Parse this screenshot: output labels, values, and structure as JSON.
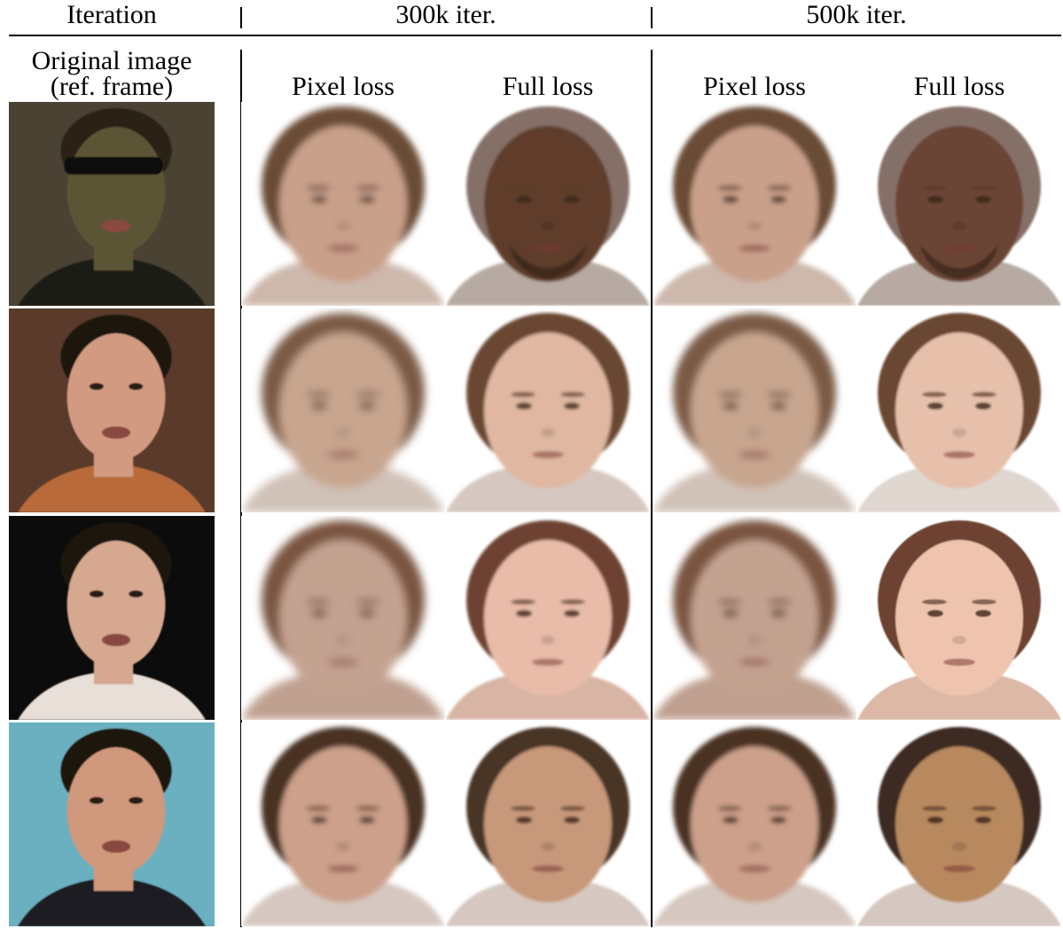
{
  "header": {
    "iteration_label": "Iteration",
    "groups": [
      "300k iter.",
      "500k iter."
    ]
  },
  "subheader": {
    "original_line1": "Original image",
    "original_line2": "(ref. frame)",
    "columns": [
      "Pixel loss",
      "Full loss",
      "Pixel loss",
      "Full loss"
    ]
  },
  "rows": [
    {
      "original": {
        "bg": "#4a4232",
        "skin": "#5b5436",
        "hair": "#2a2418",
        "sunglasses": true,
        "shirt": "#1c1a18"
      },
      "outputs": [
        {
          "bg": "#ffffff",
          "skin": "#c9a08a",
          "hair": "#6a4c36",
          "neck": "#cdb8ac",
          "blur": 1.2
        },
        {
          "bg": "#ffffff",
          "skin": "#5e3c2c",
          "hair": "#857068",
          "neck": "#b7aaa2",
          "blur": 0.5,
          "beard": true
        },
        {
          "bg": "#ffffff",
          "skin": "#c9a08a",
          "hair": "#6a4c36",
          "neck": "#cdb8ac",
          "blur": 1.0
        },
        {
          "bg": "#ffffff",
          "skin": "#6b4434",
          "hair": "#857068",
          "neck": "#b7aaa2",
          "blur": 0.4,
          "beard": true
        }
      ]
    },
    {
      "original": {
        "bg": "#5a3a2a",
        "skin": "#d39a82",
        "hair": "#1c1410",
        "sunglasses": false,
        "shirt": "#b86a3a"
      },
      "outputs": [
        {
          "bg": "#ffffff",
          "skin": "#c8a58e",
          "hair": "#7a5a44",
          "neck": "#d0c2b8",
          "blur": 1.6
        },
        {
          "bg": "#ffffff",
          "skin": "#e0b8a2",
          "hair": "#6a4632",
          "neck": "#d6c8c0",
          "blur": 0.6
        },
        {
          "bg": "#ffffff",
          "skin": "#c8a58e",
          "hair": "#7a5a44",
          "neck": "#d0c2b8",
          "blur": 1.4
        },
        {
          "bg": "#ffffff",
          "skin": "#e6c0aa",
          "hair": "#6a4632",
          "neck": "#e0d6d0",
          "blur": 0.4
        }
      ]
    },
    {
      "original": {
        "bg": "#0c0c0c",
        "skin": "#d6a890",
        "hair": "#1a1410",
        "sunglasses": false,
        "shirt": "#e8e0d8"
      },
      "outputs": [
        {
          "bg": "#ffffff",
          "skin": "#c4a290",
          "hair": "#7a5440",
          "neck": "#c0a090",
          "blur": 1.6
        },
        {
          "bg": "#ffffff",
          "skin": "#e8bca8",
          "hair": "#6e4230",
          "neck": "#d8b4a4",
          "blur": 0.5
        },
        {
          "bg": "#ffffff",
          "skin": "#c4a290",
          "hair": "#7a5440",
          "neck": "#c0a090",
          "blur": 1.4
        },
        {
          "bg": "#ffffff",
          "skin": "#eec4ae",
          "hair": "#6e4230",
          "neck": "#dcb8a6",
          "blur": 0.3
        }
      ]
    },
    {
      "original": {
        "bg": "#6ab0c0",
        "skin": "#d0987c",
        "hair": "#1a1410",
        "sunglasses": false,
        "shirt": "#1c1c24"
      },
      "outputs": [
        {
          "bg": "#ffffff",
          "skin": "#cca08a",
          "hair": "#4a3024",
          "neck": "#d6c8c0",
          "blur": 1.0
        },
        {
          "bg": "#ffffff",
          "skin": "#c8987a",
          "hair": "#4a3426",
          "neck": "#d6c8c0",
          "blur": 0.5
        },
        {
          "bg": "#ffffff",
          "skin": "#cca08a",
          "hair": "#4a3024",
          "neck": "#d6c8c0",
          "blur": 0.9
        },
        {
          "bg": "#ffffff",
          "skin": "#b8885e",
          "hair": "#3e2c22",
          "neck": "#d6c8c0",
          "blur": 0.4
        }
      ]
    }
  ]
}
